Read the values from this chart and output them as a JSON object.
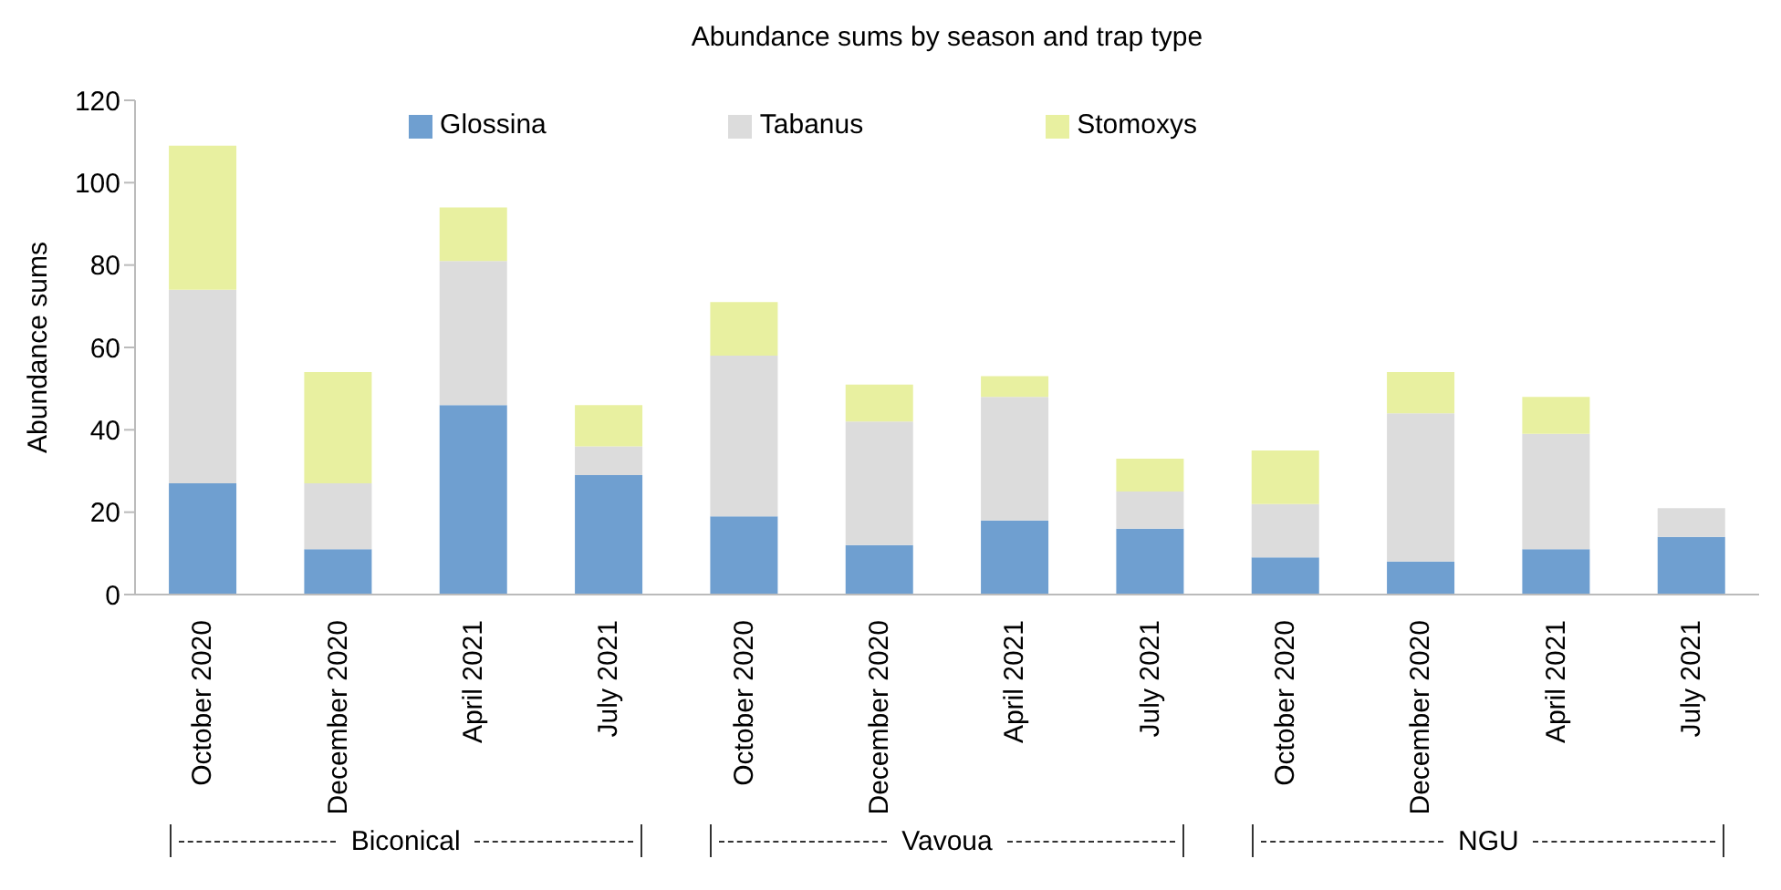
{
  "chart_data": {
    "type": "bar",
    "title": "Abundance sums by season and trap type",
    "ylabel": "Abundance sums",
    "stacked": true,
    "legend": "top",
    "grid": false,
    "categories": [
      "October 2020",
      "December 2020",
      "April 2021",
      "July 2021",
      "October 2020",
      "December 2020",
      "April 2021",
      "July 2021",
      "October 2020",
      "December 2020",
      "April 2021",
      "July 2021"
    ],
    "series": [
      {
        "name": "Glossina",
        "color": "#6f9fd0",
        "values": [
          27,
          11,
          46,
          29,
          19,
          12,
          18,
          16,
          9,
          8,
          11,
          14
        ]
      },
      {
        "name": "Tabanus",
        "color": "#dcdcdc",
        "values": [
          47,
          16,
          35,
          7,
          39,
          30,
          30,
          9,
          13,
          36,
          28,
          7
        ]
      },
      {
        "name": "Stomoxys",
        "color": "#e8f0a0",
        "values": [
          35,
          27,
          13,
          10,
          13,
          9,
          5,
          8,
          13,
          10,
          9,
          0
        ]
      }
    ],
    "ylim": [
      0,
      120
    ],
    "yticks": [
      0,
      20,
      40,
      60,
      80,
      100,
      120
    ],
    "annotations": [
      "Biconical",
      "Vavoua",
      "NGU"
    ]
  }
}
